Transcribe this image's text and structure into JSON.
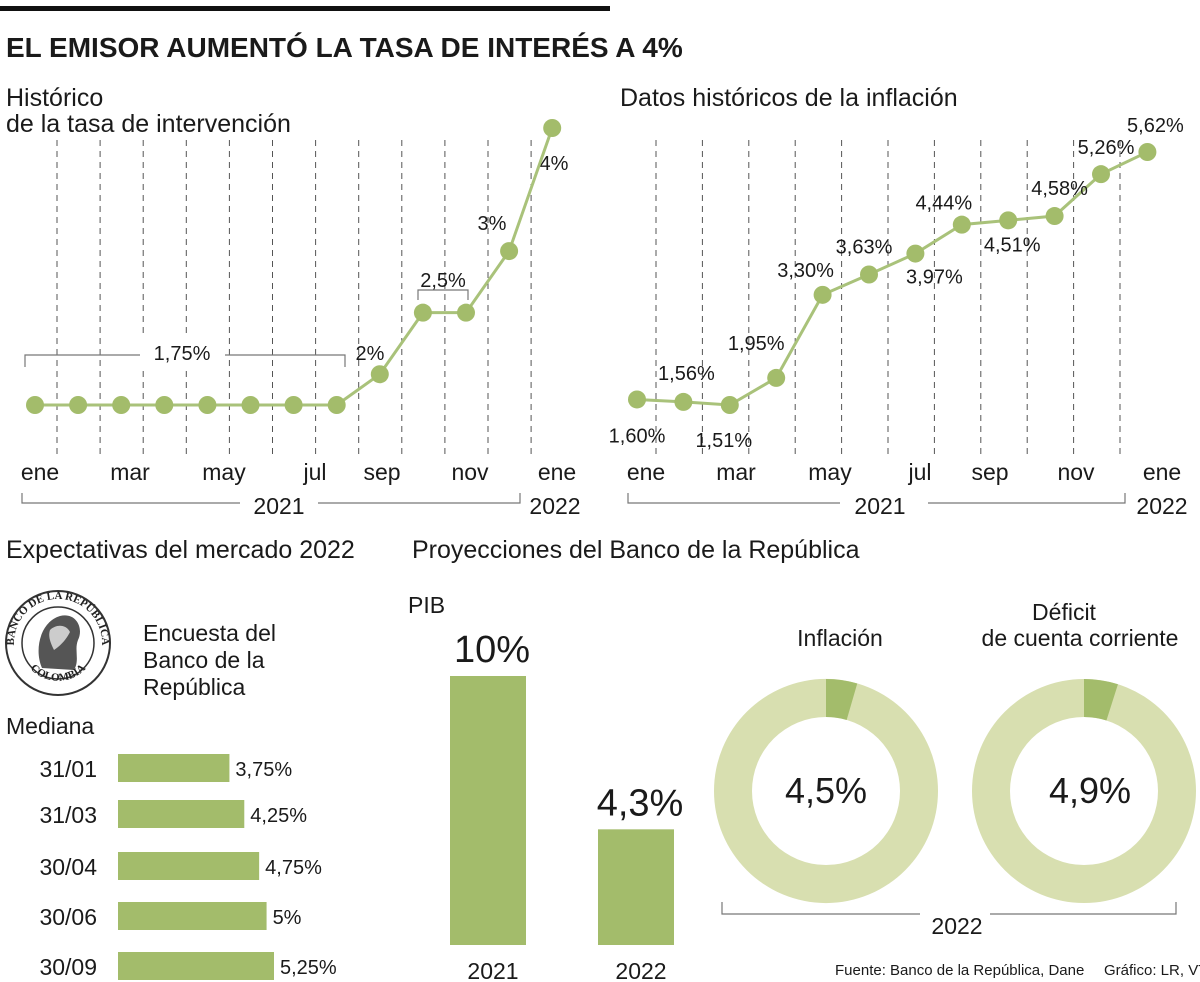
{
  "title": "EL EMISOR AUMENTÓ LA TASA DE INTERÉS A 4%",
  "colors": {
    "green": "#a3bc6b",
    "green_dark": "#99b45f",
    "green_light": "#d8dfb0",
    "line": "#a9c27a"
  },
  "chart_data": [
    {
      "type": "line",
      "title_line1": "Histórico",
      "title_line2": "de la tasa de intervención",
      "x_labels": [
        "ene",
        "mar",
        "may",
        "jul",
        "sep",
        "nov",
        "ene"
      ],
      "year_labels": [
        "2021",
        "2022"
      ],
      "values": [
        1.75,
        1.75,
        1.75,
        1.75,
        1.75,
        1.75,
        1.75,
        1.75,
        2,
        2.5,
        2.5,
        3,
        4
      ],
      "group_labels": {
        "a": "1,75%",
        "b": "2%",
        "c": "2,5%",
        "d": "3%",
        "e": "4%"
      },
      "ylim": [
        1.2,
        4.2
      ]
    },
    {
      "type": "line",
      "title": "Datos históricos de la inflación",
      "x_labels": [
        "ene",
        "mar",
        "may",
        "jul",
        "sep",
        "nov",
        "ene"
      ],
      "year_labels": [
        "2021",
        "2022"
      ],
      "values": [
        1.6,
        1.56,
        1.51,
        1.95,
        3.3,
        3.63,
        3.97,
        4.44,
        4.51,
        4.58,
        5.26,
        5.62
      ],
      "point_labels": [
        "1,60%",
        "1,56%",
        "1,51%",
        "1,95%",
        "3,30%",
        "3,63%",
        "3,97%",
        "4,44%",
        "4,51%",
        "4,58%",
        "5,26%",
        "5,62%"
      ],
      "ylim": [
        1.1,
        6.2
      ]
    },
    {
      "type": "bar",
      "orientation": "horizontal",
      "title": "Expectativas del mercado 2022",
      "survey_label_line1": "Encuesta del",
      "survey_label_line2": "Banco de la",
      "survey_label_line3": "República",
      "median_label": "Mediana",
      "categories": [
        "31/01",
        "31/03",
        "30/04",
        "30/06",
        "30/09"
      ],
      "values": [
        3.75,
        4.25,
        4.75,
        5,
        5.25
      ],
      "value_labels": [
        "3,75%",
        "4,25%",
        "4,75%",
        "5%",
        "5,25%"
      ],
      "xlim": [
        0,
        6.5
      ]
    },
    {
      "type": "bar",
      "title": "Proyecciones del Banco de la República",
      "series_label": "PIB",
      "categories": [
        "2021",
        "2022"
      ],
      "values": [
        10,
        4.3
      ],
      "value_labels": [
        "10%",
        "4,3%"
      ],
      "ylim": [
        0,
        10
      ]
    },
    {
      "type": "pie",
      "title": "Inflación",
      "value": 4.5,
      "value_label": "4,5%",
      "year": "2022"
    },
    {
      "type": "pie",
      "title_line1": "Déficit",
      "title_line2": "de cuenta corriente",
      "value": 4.9,
      "value_label": "4,9%",
      "year": "2022"
    }
  ],
  "seal": {
    "text_top": "BANCO DE LA REPÚBLICA",
    "text_bottom": "COLOMBIA"
  },
  "footer": {
    "source": "Fuente: Banco de la República, Dane",
    "credit": "Gráfico: LR, VT"
  }
}
